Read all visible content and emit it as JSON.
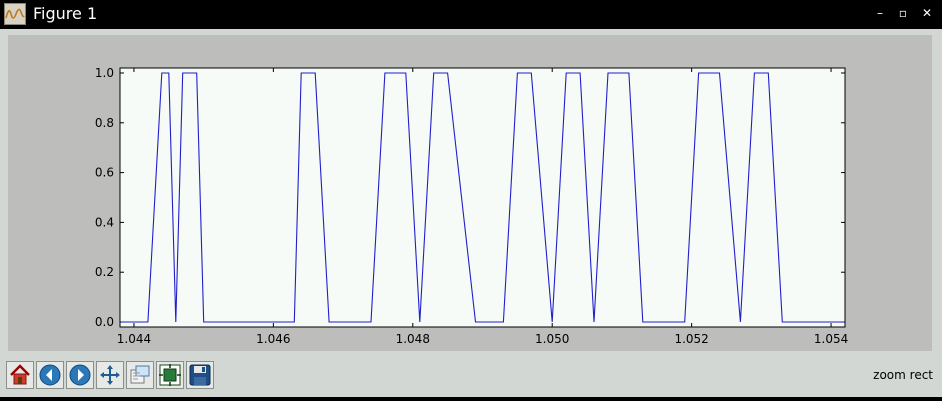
{
  "window": {
    "title": "Figure 1",
    "controls": {
      "minimize": "–",
      "maximize": "▫",
      "close": "✕"
    }
  },
  "toolbar": {
    "buttons": [
      {
        "name": "home-icon",
        "tooltip": "Home"
      },
      {
        "name": "back-icon",
        "tooltip": "Back"
      },
      {
        "name": "forward-icon",
        "tooltip": "Forward"
      },
      {
        "name": "pan-icon",
        "tooltip": "Pan"
      },
      {
        "name": "zoom-icon",
        "tooltip": "Zoom"
      },
      {
        "name": "subplots-icon",
        "tooltip": "Subplots"
      },
      {
        "name": "save-icon",
        "tooltip": "Save"
      }
    ],
    "status": "zoom rect"
  },
  "colors": {
    "line": "#1f1fcc",
    "plot_background": "#f7fbf7",
    "figure_background": "#bdbdbb"
  },
  "chart_data": {
    "type": "line",
    "title": "",
    "xlabel": "",
    "ylabel": "",
    "xlim": [
      1.0438,
      1.0542
    ],
    "ylim": [
      -0.02,
      1.02
    ],
    "xticks": [
      1.044,
      1.046,
      1.048,
      1.05,
      1.052,
      1.054
    ],
    "xtick_labels": [
      "1.044",
      "1.046",
      "1.048",
      "1.050",
      "1.052",
      "1.054"
    ],
    "yticks": [
      0.0,
      0.2,
      0.4,
      0.6,
      0.8,
      1.0
    ],
    "ytick_labels": [
      "0.0",
      "0.2",
      "0.4",
      "0.6",
      "0.8",
      "1.0"
    ],
    "grid": false,
    "series": [
      {
        "x": [
          1.0438,
          1.0442,
          1.0444,
          1.0445,
          1.0446,
          1.0447,
          1.0449,
          1.045,
          1.0451,
          1.0452,
          1.0453,
          1.0454,
          1.0463,
          1.0464,
          1.0466,
          1.0468,
          1.0473,
          1.0474,
          1.0476,
          1.0479,
          1.0481,
          1.0483,
          1.0485,
          1.0489,
          1.0491,
          1.0493,
          1.0495,
          1.0497,
          1.05,
          1.0502,
          1.0504,
          1.0506,
          1.0508,
          1.0511,
          1.0513,
          1.0515,
          1.0518,
          1.0519,
          1.0521,
          1.0524,
          1.0527,
          1.0529,
          1.0531,
          1.0533,
          1.0542
        ],
        "y": [
          0,
          0,
          1,
          1,
          0,
          1,
          1,
          0,
          0,
          0,
          0,
          0,
          0,
          1,
          1,
          0,
          0,
          0,
          1,
          1,
          0,
          1,
          1,
          0,
          0,
          0,
          1,
          1,
          0,
          1,
          1,
          0,
          1,
          1,
          0,
          0,
          0,
          0,
          1,
          1,
          0,
          1,
          1,
          0,
          0
        ]
      }
    ]
  }
}
